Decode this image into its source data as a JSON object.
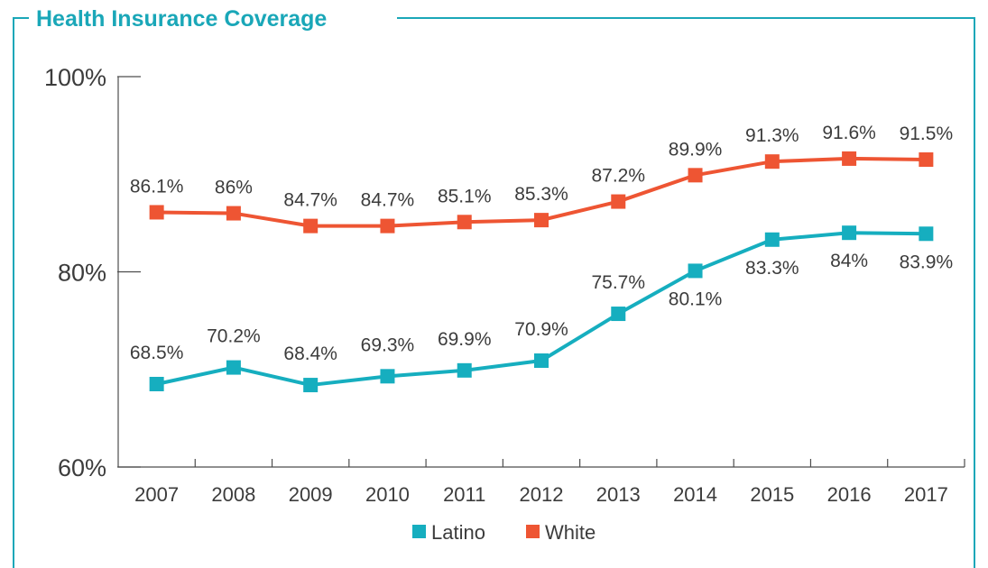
{
  "chart_data": {
    "type": "line",
    "title": "Health Insurance Coverage",
    "categories": [
      "2007",
      "2008",
      "2009",
      "2010",
      "2011",
      "2012",
      "2013",
      "2014",
      "2015",
      "2016",
      "2017"
    ],
    "y_ticks": [
      "100%",
      "80%",
      "60%"
    ],
    "ylim": [
      60,
      100
    ],
    "grid": false,
    "legend_position": "bottom-center",
    "series": [
      {
        "name": "Latino",
        "color": "#16aebf",
        "values": [
          68.5,
          70.2,
          68.4,
          69.3,
          69.9,
          70.9,
          75.7,
          80.1,
          83.3,
          84.0,
          83.9
        ],
        "labels": [
          "68.5%",
          "70.2%",
          "68.4%",
          "69.3%",
          "69.9%",
          "70.9%",
          "75.7%",
          "80.1%",
          "83.3%",
          "84%",
          "83.9%"
        ]
      },
      {
        "name": "White",
        "color": "#ee5533",
        "values": [
          86.1,
          86.0,
          84.7,
          84.7,
          85.1,
          85.3,
          87.2,
          89.9,
          91.3,
          91.6,
          91.5
        ],
        "labels": [
          "86.1%",
          "86%",
          "84.7%",
          "84.7%",
          "85.1%",
          "85.3%",
          "87.2%",
          "89.9%",
          "91.3%",
          "91.6%",
          "91.5%"
        ]
      }
    ]
  }
}
